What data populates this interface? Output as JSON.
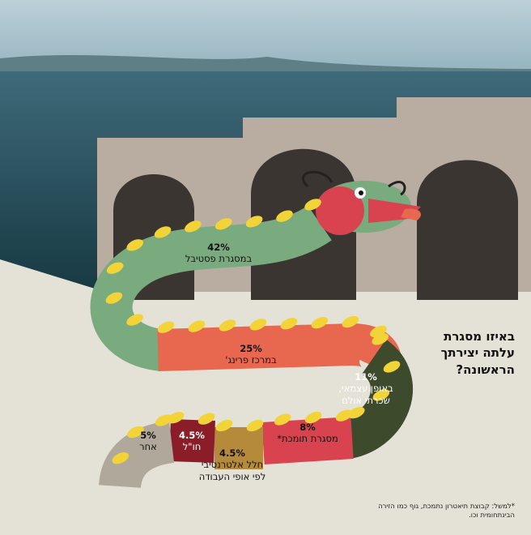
{
  "chart_data": {
    "type": "ribbon",
    "title": "באיזו מסגרת עלתה יצירתך הראשונה?",
    "footnote": "*למשל: קבוצת תיאטרון נתמכת, גוף כמו הזירה הבינתחומית וכו.",
    "categories": [
      "במסגרת פסטיבל",
      "במרכז פרינג'",
      "באופן עצמאי, שכרתי אולם",
      "מסגרת תומכת*",
      "חלל אלטרנטיבי לפי אופי העבודה",
      "חו\"ל",
      "אחר"
    ],
    "values": [
      42,
      25,
      11,
      8,
      4.5,
      4.5,
      5
    ],
    "value_labels": [
      "42%",
      "25%",
      "11%",
      "8%",
      "4.5%",
      "4.5%",
      "5%"
    ],
    "colors": [
      "#7aab7e",
      "#e8684f",
      "#3d4a2c",
      "#d8434f",
      "#b58a3a",
      "#8b1d28",
      "#b0a89a"
    ]
  }
}
